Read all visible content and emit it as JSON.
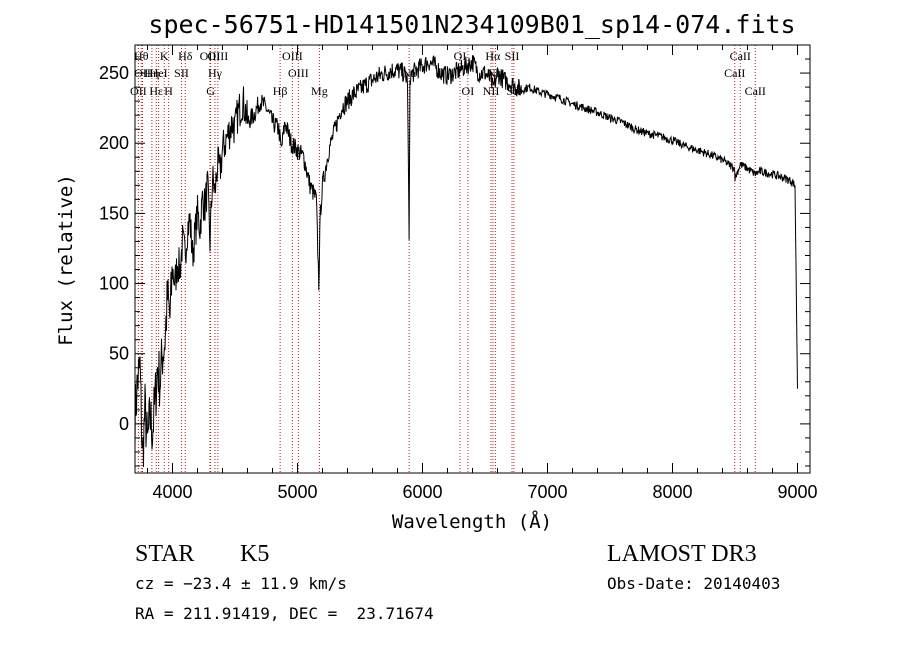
{
  "chart_data": {
    "type": "line",
    "title": "spec-56751-HD141501N234109B01_sp14-074.fits",
    "xlabel": "Wavelength (Å)",
    "ylabel": "Flux (relative)",
    "xlim": [
      3700,
      9100
    ],
    "ylim": [
      -35,
      270
    ],
    "x_ticks": [
      4000,
      5000,
      6000,
      7000,
      8000,
      9000
    ],
    "y_ticks": [
      0,
      50,
      100,
      150,
      200,
      250
    ],
    "series": [
      {
        "name": "spectrum",
        "x": [
          3700,
          3720,
          3740,
          3760,
          3780,
          3800,
          3820,
          3840,
          3860,
          3880,
          3900,
          3920,
          3940,
          3960,
          3980,
          4000,
          4020,
          4040,
          4060,
          4080,
          4100,
          4120,
          4140,
          4160,
          4180,
          4200,
          4220,
          4240,
          4260,
          4280,
          4300,
          4320,
          4340,
          4360,
          4380,
          4400,
          4420,
          4440,
          4460,
          4480,
          4500,
          4520,
          4540,
          4560,
          4580,
          4600,
          4650,
          4700,
          4750,
          4800,
          4850,
          4870,
          4900,
          4950,
          5000,
          5050,
          5100,
          5150,
          5170,
          5183,
          5200,
          5250,
          5300,
          5350,
          5400,
          5450,
          5500,
          5550,
          5600,
          5650,
          5700,
          5750,
          5800,
          5850,
          5880,
          5893,
          5900,
          5950,
          6000,
          6050,
          6100,
          6150,
          6200,
          6250,
          6300,
          6350,
          6400,
          6450,
          6500,
          6550,
          6563,
          6600,
          6650,
          6700,
          6750,
          6800,
          6850,
          6900,
          6950,
          7000,
          7100,
          7200,
          7300,
          7400,
          7500,
          7600,
          7700,
          7800,
          7900,
          8000,
          8100,
          8200,
          8300,
          8400,
          8498,
          8500,
          8542,
          8600,
          8662,
          8700,
          8800,
          8900,
          8950,
          8980,
          9000
        ],
        "values": [
          5,
          30,
          40,
          -25,
          10,
          -15,
          5,
          -5,
          15,
          40,
          30,
          50,
          60,
          90,
          75,
          110,
          100,
          115,
          110,
          130,
          120,
          140,
          145,
          120,
          135,
          150,
          140,
          160,
          155,
          170,
          130,
          175,
          165,
          185,
          180,
          195,
          200,
          205,
          210,
          215,
          210,
          220,
          225,
          230,
          225,
          215,
          220,
          230,
          225,
          215,
          210,
          195,
          215,
          200,
          195,
          190,
          170,
          160,
          100,
          150,
          170,
          195,
          210,
          225,
          230,
          235,
          238,
          242,
          245,
          248,
          250,
          252,
          252,
          250,
          245,
          130,
          248,
          252,
          255,
          258,
          255,
          250,
          248,
          250,
          252,
          255,
          258,
          250,
          250,
          245,
          238,
          250,
          245,
          243,
          240,
          238,
          240,
          238,
          236,
          235,
          232,
          228,
          225,
          222,
          218,
          215,
          210,
          207,
          205,
          202,
          198,
          195,
          192,
          188,
          182,
          175,
          185,
          182,
          178,
          180,
          178,
          175,
          173,
          170,
          25
        ]
      }
    ],
    "lines": [
      {
        "label": "OII",
        "x": 3727,
        "row": 2
      },
      {
        "label": "Hθ",
        "x": 3750,
        "row": 0
      },
      {
        "label": "OII",
        "x": 3760,
        "row": 1
      },
      {
        "label": "Hη",
        "x": 3835,
        "row": 1
      },
      {
        "label": "Hε",
        "x": 3870,
        "row": 2
      },
      {
        "label": "HeI",
        "x": 3889,
        "row": 1
      },
      {
        "label": "K",
        "x": 3934,
        "row": 0
      },
      {
        "label": "H",
        "x": 3969,
        "row": 2
      },
      {
        "label": "SII",
        "x": 4072,
        "row": 1
      },
      {
        "label": "Hδ",
        "x": 4102,
        "row": 0
      },
      {
        "label": "OIII",
        "x": 4300,
        "row": 0
      },
      {
        "label": "G",
        "x": 4305,
        "row": 2
      },
      {
        "label": "Hγ",
        "x": 4340,
        "row": 1
      },
      {
        "label": "OIII",
        "x": 4363,
        "row": 0
      },
      {
        "label": "Hβ",
        "x": 4861,
        "row": 2
      },
      {
        "label": "OIII",
        "x": 4959,
        "row": 0
      },
      {
        "label": "OIII",
        "x": 5007,
        "row": 1
      },
      {
        "label": "Mg",
        "x": 5175,
        "row": 2
      },
      {
        "label": "Na",
        "x": 5893,
        "row": 1
      },
      {
        "label": "OI",
        "x": 6300,
        "row": 0
      },
      {
        "label": "OI",
        "x": 6363,
        "row": 2
      },
      {
        "label": "NII",
        "x": 6548,
        "row": 2
      },
      {
        "label": "Hα",
        "x": 6563,
        "row": 0
      },
      {
        "label": "NII",
        "x": 6583,
        "row": 1
      },
      {
        "label": "SII",
        "x": 6716,
        "row": 0
      },
      {
        "label": "SII",
        "x": 6731,
        "row": 2
      },
      {
        "label": "CaII",
        "x": 8498,
        "row": 1
      },
      {
        "label": "CaII",
        "x": 8542,
        "row": 0
      },
      {
        "label": "CaII",
        "x": 8662,
        "row": 2
      }
    ]
  },
  "info": {
    "class": "STAR",
    "subclass": "K5",
    "survey": "LAMOST DR3",
    "cz": "cz = −23.4 ± 11.9 km/s",
    "obs_date": "Obs-Date: 20140403",
    "coords": "RA = 211.91419, DEC =  23.71674"
  },
  "colors": {
    "line_marker": "#b22222",
    "spectrum": "#000000"
  }
}
